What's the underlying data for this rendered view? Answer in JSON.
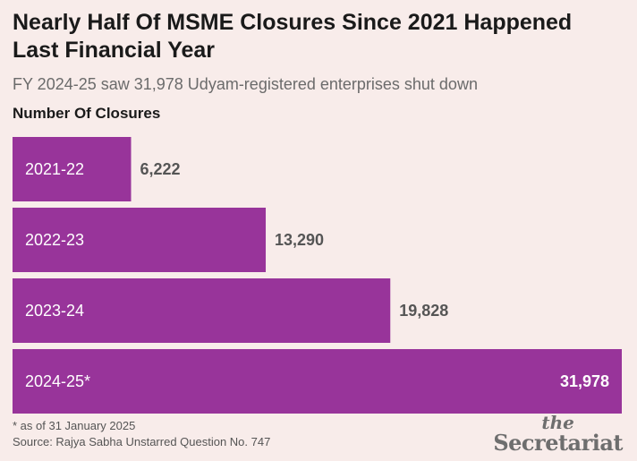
{
  "header": {
    "title": "Nearly Half Of MSME Closures Since 2021 Happened Last Financial Year",
    "subtitle": "FY 2024-25 saw 31,978 Udyam-registered enterprises shut down"
  },
  "chart_data": {
    "type": "bar",
    "orientation": "horizontal",
    "title": "Nearly Half Of MSME Closures Since 2021 Happened Last Financial Year",
    "xlabel": "",
    "ylabel": "Number Of Closures",
    "categories": [
      "2021-22",
      "2022-23",
      "2023-24",
      "2024-25*"
    ],
    "values": [
      6222,
      13290,
      19828,
      31978
    ],
    "value_labels": [
      "6,222",
      "13,290",
      "19,828",
      "31,978"
    ],
    "xlim": [
      0,
      31978
    ],
    "grid": false,
    "legend": "none",
    "bar_color": "#98349a"
  },
  "footer": {
    "note": "* as of 31 January 2025",
    "source": "Source: Rajya Sabha Unstarred Question No. 747"
  },
  "logo": {
    "the": "the",
    "name": "Secretariat"
  }
}
